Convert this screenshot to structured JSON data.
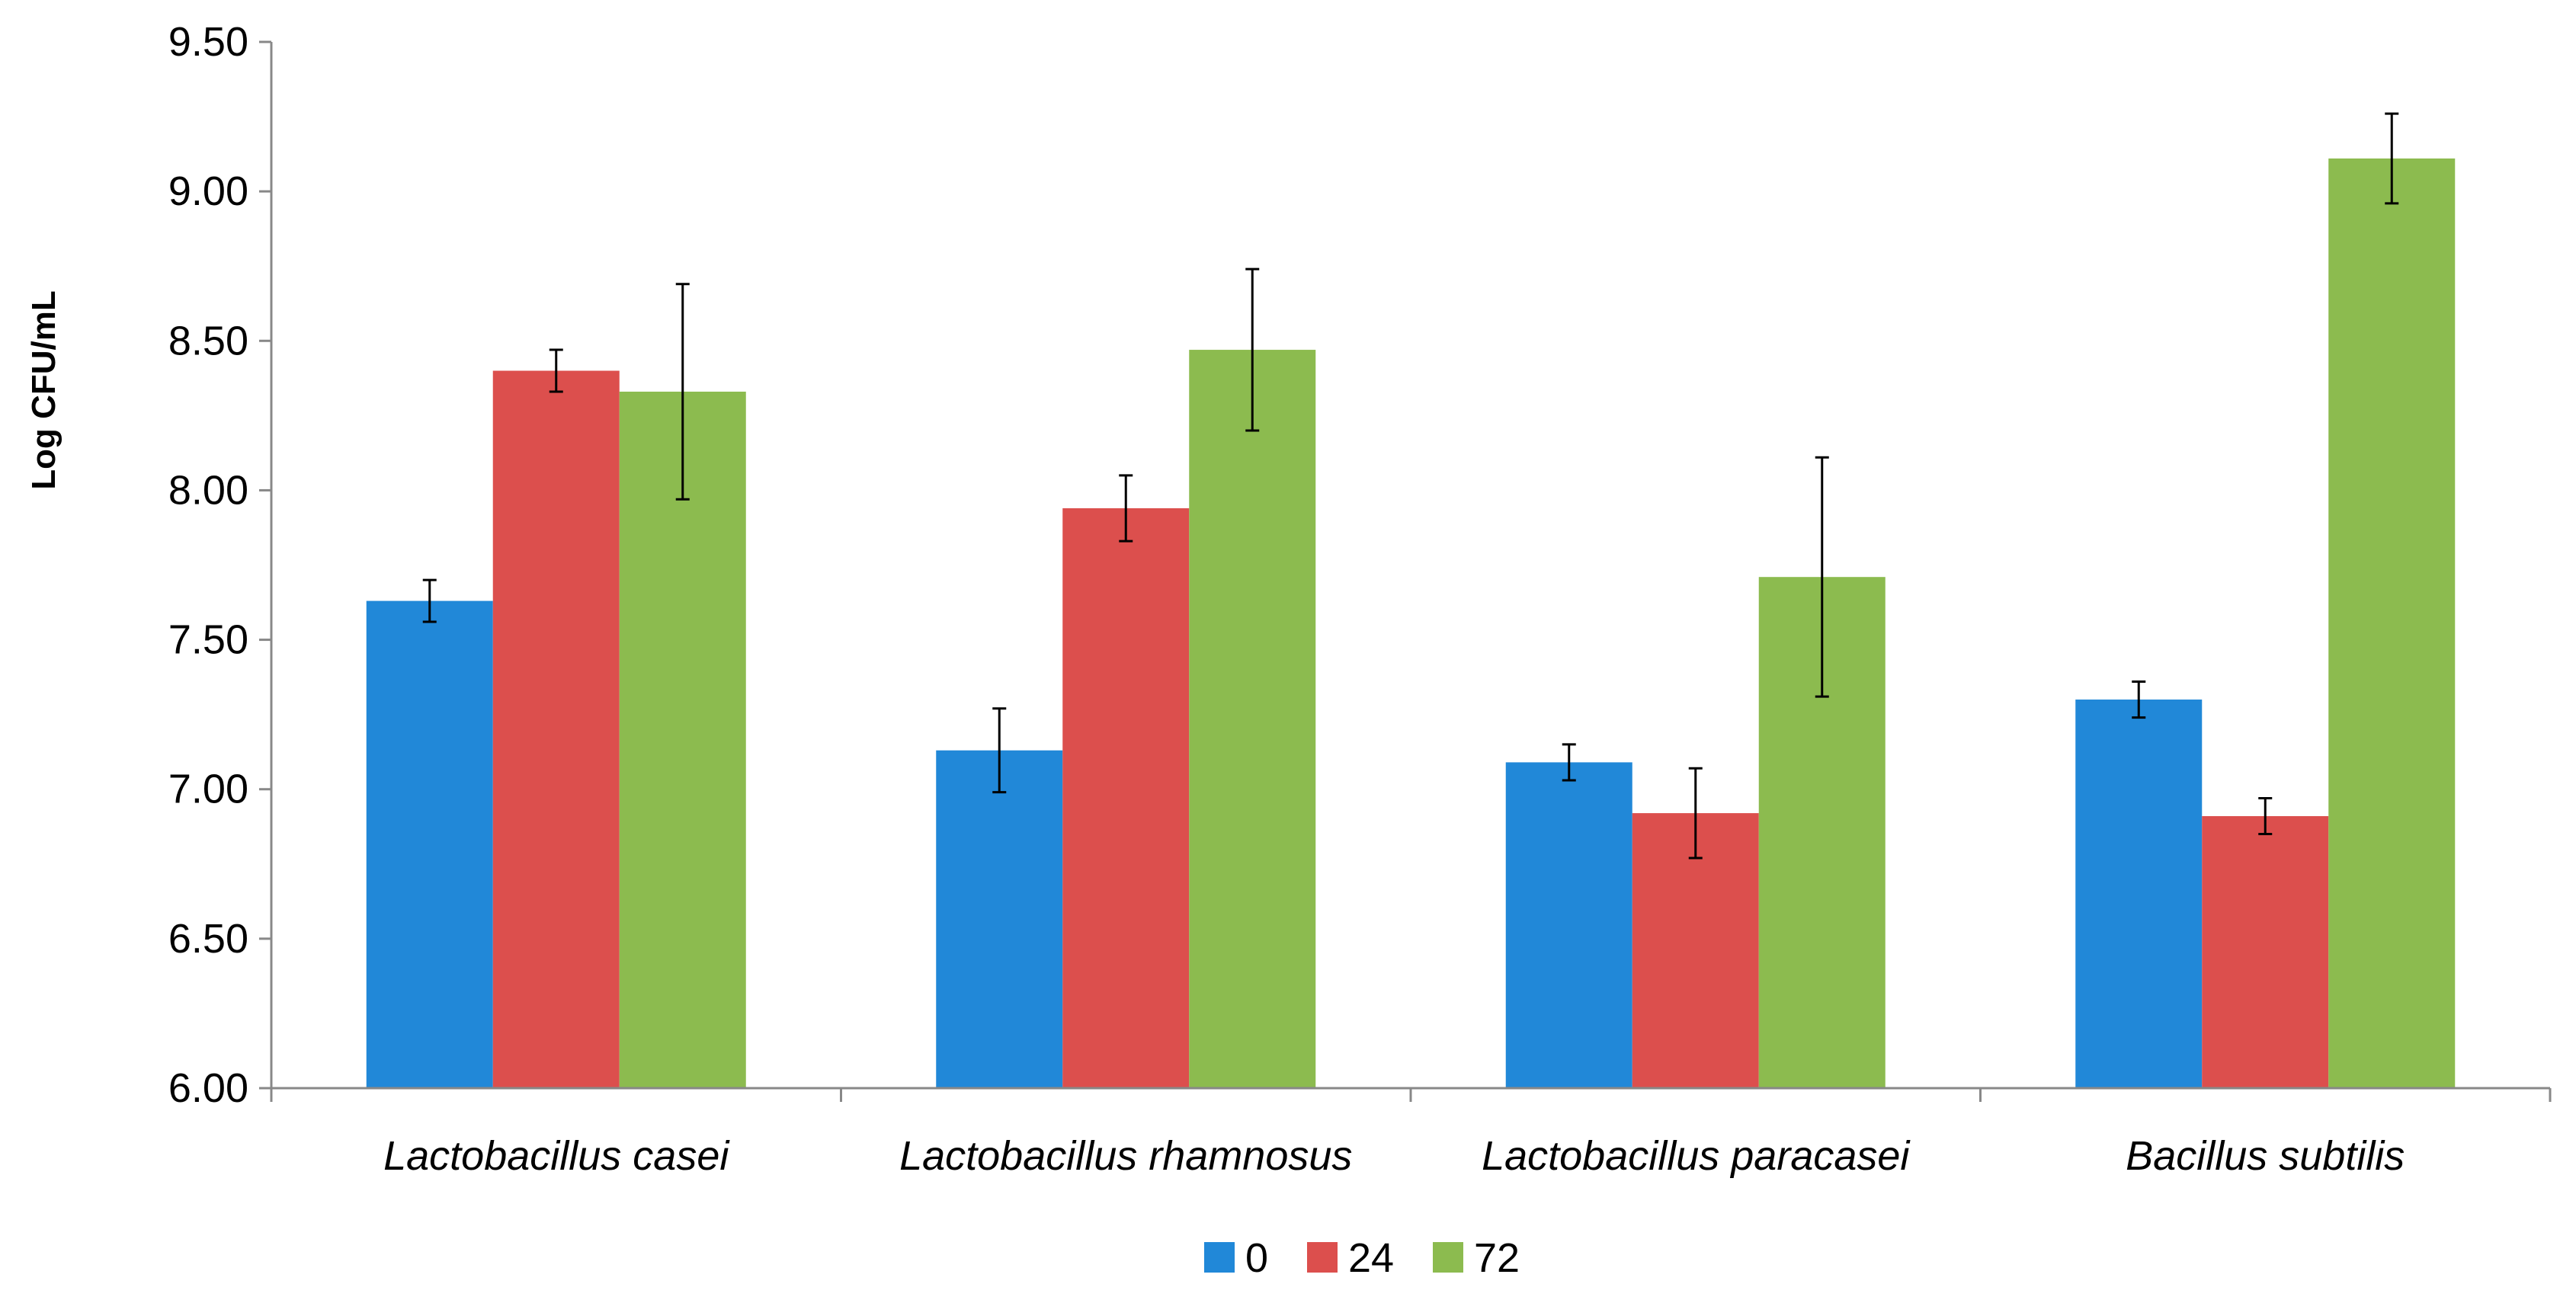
{
  "chart_data": {
    "type": "bar",
    "title": "",
    "xlabel": "",
    "ylabel": "Log CFU/mL",
    "ylim": [
      6.0,
      9.5
    ],
    "yticks": [
      "6.00",
      "6.50",
      "7.00",
      "7.50",
      "8.00",
      "8.50",
      "9.00",
      "9.50"
    ],
    "grid": false,
    "legend_position": "bottom",
    "categories": [
      "Lactobacillus casei",
      "Lactobacillus rhamnosus",
      "Lactobacillus paracasei",
      "Bacillus subtilis"
    ],
    "series": [
      {
        "name": "0",
        "color": "#2188d8",
        "values": [
          7.63,
          7.13,
          7.09,
          7.3
        ],
        "errors": [
          0.07,
          0.14,
          0.06,
          0.06
        ]
      },
      {
        "name": "24",
        "color": "#dc4f4d",
        "values": [
          8.4,
          7.94,
          6.92,
          6.91
        ],
        "errors": [
          0.07,
          0.11,
          0.15,
          0.06
        ]
      },
      {
        "name": "72",
        "color": "#8cbb4f",
        "values": [
          8.33,
          8.47,
          7.71,
          9.11
        ],
        "errors": [
          0.36,
          0.27,
          0.4,
          0.15
        ]
      }
    ]
  }
}
